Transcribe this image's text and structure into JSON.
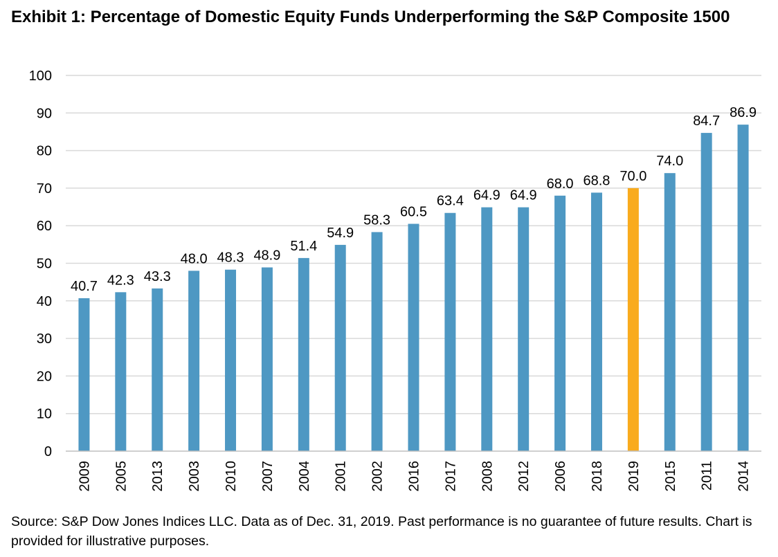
{
  "header": {
    "title": "Exhibit 1: Percentage of Domestic Equity Funds Underperforming the S&P Composite 1500"
  },
  "footer": {
    "source": "Source: S&P Dow Jones Indices LLC.  Data as of Dec. 31, 2019.  Past performance is no guarantee of future results.  Chart is provided for illustrative purposes."
  },
  "colors": {
    "bar": "#4e98c3",
    "highlight": "#f9ab1d",
    "grid": "#d9d9d9",
    "axis": "#bfbfbf"
  },
  "chart_data": {
    "type": "bar",
    "title": "Exhibit 1: Percentage of Domestic Equity Funds Underperforming the S&P Composite 1500",
    "xlabel": "",
    "ylabel": "",
    "ylim": [
      0,
      100
    ],
    "yticks": [
      0,
      10,
      20,
      30,
      40,
      50,
      60,
      70,
      80,
      90,
      100
    ],
    "grid": true,
    "categories": [
      "2009",
      "2005",
      "2013",
      "2003",
      "2010",
      "2007",
      "2004",
      "2001",
      "2002",
      "2016",
      "2017",
      "2008",
      "2012",
      "2006",
      "2018",
      "2019",
      "2015",
      "2011",
      "2014"
    ],
    "values": [
      40.7,
      42.3,
      43.3,
      48.0,
      48.3,
      48.9,
      51.4,
      54.9,
      58.3,
      60.5,
      63.4,
      64.9,
      64.9,
      68.0,
      68.8,
      70.0,
      74.0,
      84.7,
      86.9
    ],
    "labels": [
      "40.7",
      "42.3",
      "43.3",
      "48.0",
      "48.3",
      "48.9",
      "51.4",
      "54.9",
      "58.3",
      "60.5",
      "63.4",
      "64.9",
      "64.9",
      "68.0",
      "68.8",
      "70.0",
      "74.0",
      "84.7",
      "86.9"
    ],
    "highlight_category": "2019"
  }
}
